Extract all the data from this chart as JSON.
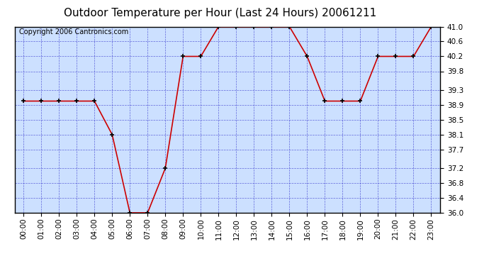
{
  "title": "Outdoor Temperature per Hour (Last 24 Hours) 20061211",
  "copyright_text": "Copyright 2006 Cantronics.com",
  "hours": [
    0,
    1,
    2,
    3,
    4,
    5,
    6,
    7,
    8,
    9,
    10,
    11,
    12,
    13,
    14,
    15,
    16,
    17,
    18,
    19,
    20,
    21,
    22,
    23
  ],
  "hour_labels": [
    "00:00",
    "01:00",
    "02:00",
    "03:00",
    "04:00",
    "05:00",
    "06:00",
    "07:00",
    "08:00",
    "09:00",
    "10:00",
    "11:00",
    "12:00",
    "13:00",
    "14:00",
    "15:00",
    "16:00",
    "17:00",
    "18:00",
    "19:00",
    "20:00",
    "21:00",
    "22:00",
    "23:00"
  ],
  "temps": [
    39.0,
    39.0,
    39.0,
    39.0,
    39.0,
    38.1,
    36.0,
    36.0,
    37.2,
    40.2,
    40.2,
    41.0,
    41.0,
    41.0,
    41.0,
    41.0,
    40.2,
    39.0,
    39.0,
    39.0,
    40.2,
    40.2,
    40.2,
    41.0
  ],
  "ylim": [
    36.0,
    41.0
  ],
  "yticks": [
    36.0,
    36.4,
    36.8,
    37.2,
    37.7,
    38.1,
    38.5,
    38.9,
    39.3,
    39.8,
    40.2,
    40.6,
    41.0
  ],
  "line_color": "#cc0000",
  "marker_color": "#000000",
  "bg_color": "#ffffff",
  "plot_bg_color": "#cce0ff",
  "grid_color": "#3333cc",
  "title_color": "#000000",
  "title_fontsize": 11,
  "copyright_fontsize": 7,
  "tick_fontsize": 7.5,
  "border_color": "#000000"
}
